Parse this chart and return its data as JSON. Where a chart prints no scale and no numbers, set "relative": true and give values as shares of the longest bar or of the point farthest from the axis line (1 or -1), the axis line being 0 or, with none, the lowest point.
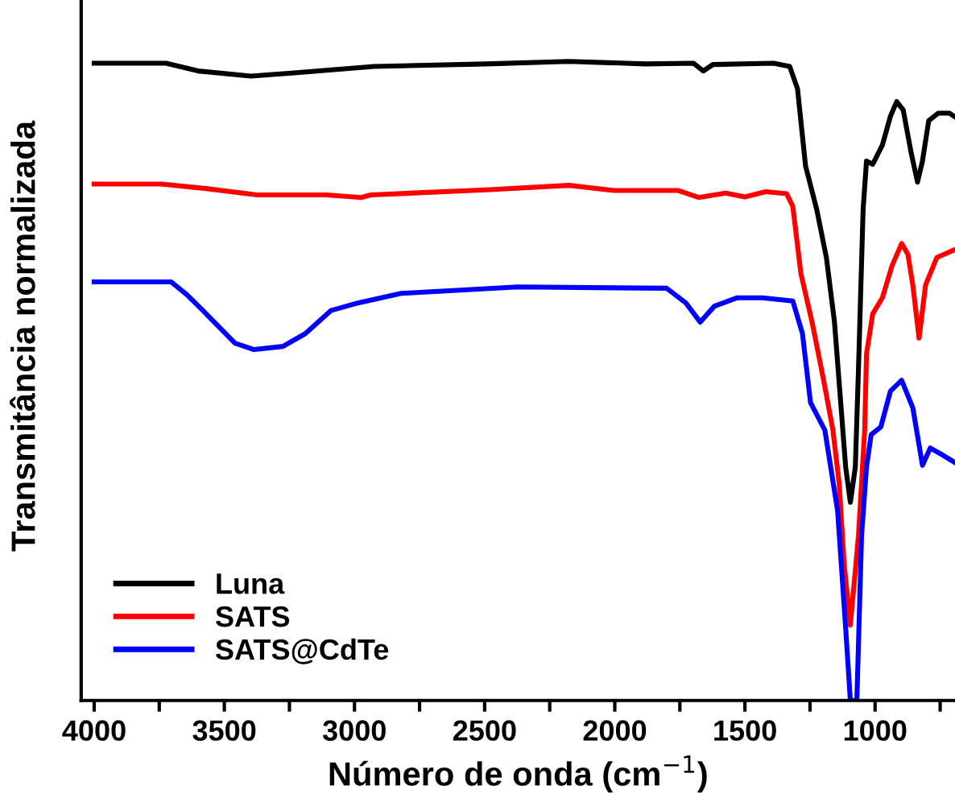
{
  "chart_data": {
    "type": "line",
    "xlabel": "Número de onda (cm$^{−1}$)",
    "ylabel": "Transmitância normalizada",
    "relative": true,
    "xlim": [
      4050,
      693
    ],
    "xticks": [
      4000,
      {
        "value": 3750,
        "label": null
      },
      3500,
      {
        "value": 3250,
        "label": null
      },
      3000,
      {
        "value": 2750,
        "label": null
      },
      2500,
      {
        "value": 2250,
        "label": null
      },
      2000,
      {
        "value": 1750,
        "label": null
      },
      1500,
      {
        "value": 1250,
        "label": null
      },
      1000,
      {
        "value": 750,
        "label": null
      }
    ],
    "legend": "bottom left",
    "grid": false,
    "marker": "none",
    "line_style": "solid",
    "series": [
      {
        "name": "Luna",
        "color": "#000000",
        "x": [
          4000,
          3724,
          3601,
          3398,
          3232,
          2925,
          2495,
          2176,
          1881,
          1697,
          1660,
          1623,
          1390,
          1328,
          1298,
          1267,
          1224,
          1187,
          1156,
          1132,
          1113,
          1095,
          1076,
          1064,
          1046,
          1033,
          1009,
          972,
          941,
          917,
          892,
          861,
          837,
          818,
          794,
          757,
          714,
          696
        ],
        "values": [
          0.997,
          0.997,
          0.985,
          0.977,
          0.982,
          0.992,
          0.996,
          1.0,
          0.996,
          0.997,
          0.985,
          0.995,
          0.997,
          0.992,
          0.957,
          0.836,
          0.768,
          0.693,
          0.592,
          0.466,
          0.365,
          0.31,
          0.365,
          0.516,
          0.768,
          0.844,
          0.839,
          0.869,
          0.914,
          0.937,
          0.924,
          0.856,
          0.811,
          0.844,
          0.907,
          0.919,
          0.919,
          0.914
        ]
      },
      {
        "name": "SATS",
        "color": "#ff0000",
        "x": [
          4000,
          3742,
          3570,
          3374,
          3109,
          2974,
          2937,
          2495,
          2176,
          2004,
          1758,
          1678,
          1574,
          1500,
          1420,
          1340,
          1316,
          1285,
          1242,
          1199,
          1162,
          1138,
          1119,
          1095,
          1064,
          1040,
          1033,
          1009,
          972,
          935,
          898,
          874,
          855,
          831,
          806,
          763,
          696
        ],
        "values": [
          0.808,
          0.808,
          0.801,
          0.791,
          0.791,
          0.787,
          0.791,
          0.799,
          0.806,
          0.798,
          0.798,
          0.787,
          0.794,
          0.788,
          0.796,
          0.793,
          0.773,
          0.668,
          0.592,
          0.504,
          0.423,
          0.34,
          0.214,
          0.118,
          0.257,
          0.423,
          0.542,
          0.605,
          0.63,
          0.68,
          0.715,
          0.698,
          0.65,
          0.567,
          0.65,
          0.693,
          0.705
        ]
      },
      {
        "name": "SATS@CdTe",
        "color": "#0000ff",
        "x": [
          4000,
          3705,
          3644,
          3582,
          3459,
          3386,
          3275,
          3189,
          3091,
          2987,
          2821,
          2372,
          1801,
          1727,
          1672,
          1617,
          1531,
          1433,
          1316,
          1279,
          1248,
          1193,
          1144,
          1113,
          1095,
          1070,
          1052,
          1033,
          1015,
          978,
          941,
          898,
          855,
          818,
          788,
          745,
          696
        ],
        "values": [
          0.655,
          0.655,
          0.635,
          0.61,
          0.559,
          0.549,
          0.554,
          0.574,
          0.61,
          0.622,
          0.637,
          0.647,
          0.645,
          0.622,
          0.592,
          0.617,
          0.63,
          0.63,
          0.625,
          0.574,
          0.466,
          0.423,
          0.297,
          0.113,
          0.0,
          0.0,
          0.257,
          0.365,
          0.416,
          0.428,
          0.484,
          0.501,
          0.458,
          0.368,
          0.395,
          0.385,
          0.373
        ]
      }
    ]
  }
}
